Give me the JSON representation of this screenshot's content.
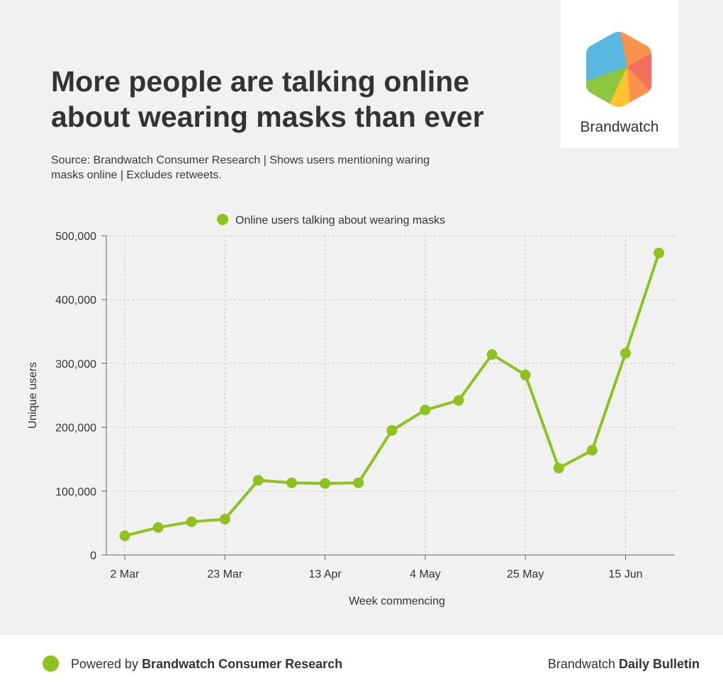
{
  "header": {
    "title": "More people are talking online about wearing masks than ever",
    "subtitle": "Source: Brandwatch Consumer Research | Shows users mentioning waring masks online | Excludes retweets."
  },
  "logo": {
    "text": "Brandwatch",
    "icon": "brandwatch-hexagon-logo"
  },
  "footer": {
    "powered_prefix": "Powered by ",
    "powered_name": "Brandwatch Consumer Research",
    "right_prefix": "Brandwatch ",
    "right_name": "Daily Bulletin"
  },
  "chart_data": {
    "type": "line",
    "title": "",
    "xlabel": "Week commencing",
    "ylabel": "Unique users",
    "ylim": [
      0,
      500000
    ],
    "yticks": [
      0,
      100000,
      200000,
      300000,
      400000,
      500000
    ],
    "ytick_labels": [
      "0",
      "100,000",
      "200,000",
      "300,000",
      "400,000",
      "500,000"
    ],
    "xtick_labels": [
      "2 Mar",
      "23 Mar",
      "13 Apr",
      "4 May",
      "25 May",
      "15 Jun"
    ],
    "grid": true,
    "legend_position": "top-center",
    "color": "#8dc21f",
    "categories": [
      "2 Mar",
      "9 Mar",
      "16 Mar",
      "23 Mar",
      "30 Mar",
      "6 Apr",
      "13 Apr",
      "20 Apr",
      "27 Apr",
      "4 May",
      "11 May",
      "18 May",
      "25 May",
      "1 Jun",
      "8 Jun",
      "15 Jun",
      "22 Jun"
    ],
    "series": [
      {
        "name": "Online users talking about wearing masks",
        "values": [
          30000,
          43000,
          52000,
          56000,
          117000,
          113000,
          112000,
          113000,
          195000,
          227000,
          242000,
          314000,
          282000,
          136000,
          164000,
          316000,
          473000
        ]
      }
    ]
  }
}
